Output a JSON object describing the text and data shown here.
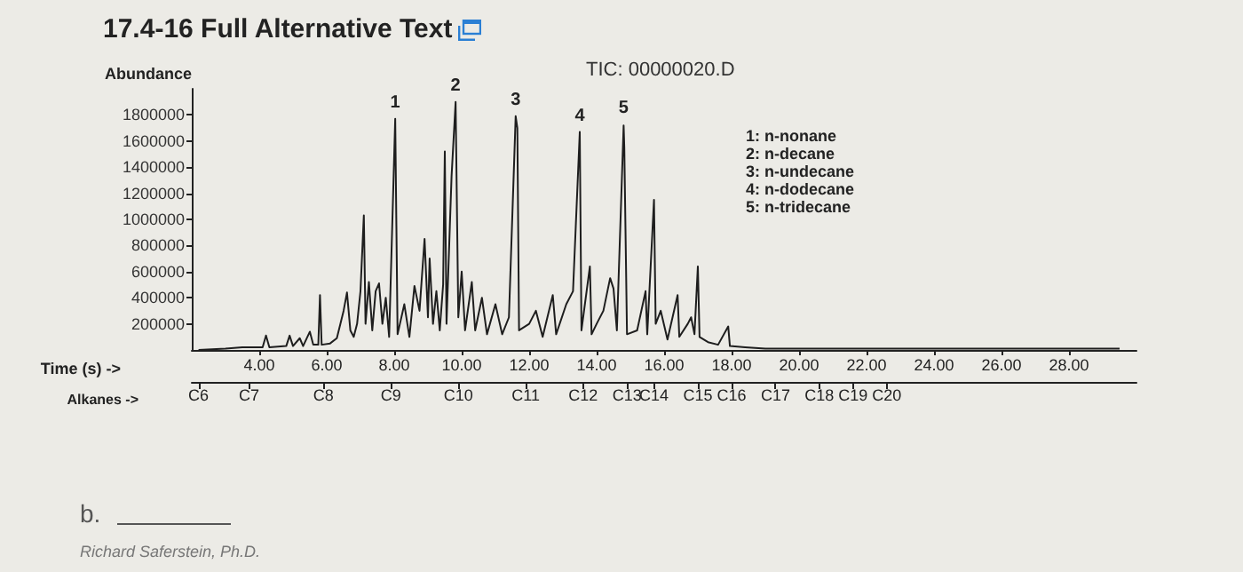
{
  "chart_data": {
    "type": "line",
    "title": "17.4-16 Full Alternative Text",
    "xlabel": "Time (s) ->",
    "ylabel": "Abundance",
    "x2label": "Alkanes ->",
    "annotations": [
      "TIC: 00000020.D",
      "1: n-nonane",
      "2: n-decane",
      "3: n-undecane",
      "4: n-dodecane",
      "5: n-tridecane",
      "b.",
      "Richard Saferstein, Ph.D.",
      {
        "text": "1",
        "x": 8.03,
        "y": 1770000
      },
      {
        "text": "2",
        "x": 9.82,
        "y": 1900000
      },
      {
        "text": "3",
        "x": 11.6,
        "y": 1790000
      },
      {
        "text": "4",
        "x": 13.5,
        "y": 1670000
      },
      {
        "text": "5",
        "x": 14.8,
        "y": 1725000
      }
    ],
    "ref_lines": [
      {
        "axis": "x",
        "value": 2.2,
        "label": "C6"
      },
      {
        "axis": "x",
        "value": 3.7,
        "label": "C7"
      },
      {
        "axis": "x",
        "value": 5.9,
        "label": "C8"
      },
      {
        "axis": "x",
        "value": 7.9,
        "label": "C9"
      },
      {
        "axis": "x",
        "value": 9.9,
        "label": "C10"
      },
      {
        "axis": "x",
        "value": 11.9,
        "label": "C11"
      },
      {
        "axis": "x",
        "value": 13.6,
        "label": "C12"
      },
      {
        "axis": "x",
        "value": 14.9,
        "label": "C13"
      },
      {
        "axis": "x",
        "value": 15.7,
        "label": "C14"
      },
      {
        "axis": "x",
        "value": 17.0,
        "label": "C15"
      },
      {
        "axis": "x",
        "value": 18.0,
        "label": "C16"
      },
      {
        "axis": "x",
        "value": 19.3,
        "label": "C17"
      },
      {
        "axis": "x",
        "value": 20.6,
        "label": "C18"
      },
      {
        "axis": "x",
        "value": 21.6,
        "label": "C19"
      },
      {
        "axis": "x",
        "value": 22.6,
        "label": "C20"
      }
    ],
    "xlim": [
      2,
      30
    ],
    "xticks": [
      {
        "value": 4,
        "label": "4.00"
      },
      {
        "value": 6,
        "label": "6.00"
      },
      {
        "value": 8,
        "label": "8.00"
      },
      {
        "value": 10,
        "label": "10.00"
      },
      {
        "value": 12,
        "label": "12.00"
      },
      {
        "value": 14,
        "label": "14.00"
      },
      {
        "value": 16,
        "label": "16.00"
      },
      {
        "value": 18,
        "label": "18.00"
      },
      {
        "value": 20,
        "label": "20.00"
      },
      {
        "value": 22,
        "label": "22.00"
      },
      {
        "value": 24,
        "label": "24.00"
      },
      {
        "value": 26,
        "label": "26.00"
      },
      {
        "value": 28,
        "label": "28.00"
      }
    ],
    "ylim": [
      0,
      2000000
    ],
    "yticks": [
      200000,
      400000,
      600000,
      800000,
      1000000,
      1200000,
      1400000,
      1600000,
      1800000
    ],
    "grid": false,
    "marker": "none",
    "line_style": "solid",
    "series": [
      {
        "color": "#1e1e1e",
        "x": [
          2.2,
          3.0,
          3.5,
          4.1,
          4.2,
          4.3,
          4.8,
          4.9,
          5.0,
          5.2,
          5.3,
          5.5,
          5.6,
          5.75,
          5.8,
          5.85,
          6.1,
          6.3,
          6.5,
          6.6,
          6.7,
          6.8,
          6.9,
          7.0,
          7.1,
          7.15,
          7.25,
          7.35,
          7.45,
          7.55,
          7.65,
          7.75,
          7.85,
          8.03,
          8.1,
          8.3,
          8.45,
          8.6,
          8.75,
          8.9,
          9.0,
          9.05,
          9.15,
          9.25,
          9.35,
          9.45,
          9.5,
          9.55,
          9.7,
          9.82,
          9.9,
          10.0,
          10.1,
          10.3,
          10.4,
          10.6,
          10.75,
          11.0,
          11.2,
          11.4,
          11.6,
          11.65,
          11.7,
          12.0,
          12.2,
          12.4,
          12.7,
          12.8,
          13.1,
          13.3,
          13.5,
          13.55,
          13.8,
          13.85,
          14.0,
          14.2,
          14.4,
          14.5,
          14.6,
          14.8,
          14.82,
          14.9,
          15.2,
          15.45,
          15.5,
          15.7,
          15.75,
          15.9,
          16.1,
          16.4,
          16.45,
          16.7,
          16.8,
          16.9,
          17.0,
          17.05,
          17.3,
          17.6,
          17.9,
          17.95,
          18.4,
          19.0,
          20.0,
          22.0,
          24.0,
          26.0,
          29.5
        ],
        "values": [
          0,
          10000,
          20000,
          20000,
          110000,
          20000,
          30000,
          110000,
          30000,
          90000,
          30000,
          140000,
          40000,
          40000,
          420000,
          40000,
          50000,
          90000,
          300000,
          440000,
          150000,
          100000,
          200000,
          450000,
          1030000,
          200000,
          520000,
          150000,
          450000,
          510000,
          200000,
          400000,
          100000,
          1770000,
          120000,
          350000,
          100000,
          490000,
          300000,
          850000,
          250000,
          700000,
          200000,
          450000,
          150000,
          500000,
          1520000,
          200000,
          1330000,
          1900000,
          250000,
          600000,
          150000,
          520000,
          150000,
          400000,
          120000,
          350000,
          120000,
          250000,
          1790000,
          1700000,
          150000,
          200000,
          300000,
          100000,
          420000,
          120000,
          350000,
          450000,
          1670000,
          150000,
          640000,
          120000,
          200000,
          300000,
          550000,
          470000,
          150000,
          1720000,
          1550000,
          120000,
          150000,
          450000,
          120000,
          1150000,
          200000,
          300000,
          80000,
          420000,
          100000,
          200000,
          250000,
          120000,
          640000,
          100000,
          60000,
          40000,
          180000,
          30000,
          20000,
          10000,
          10000,
          10000,
          10000,
          10000,
          10000
        ]
      }
    ]
  }
}
